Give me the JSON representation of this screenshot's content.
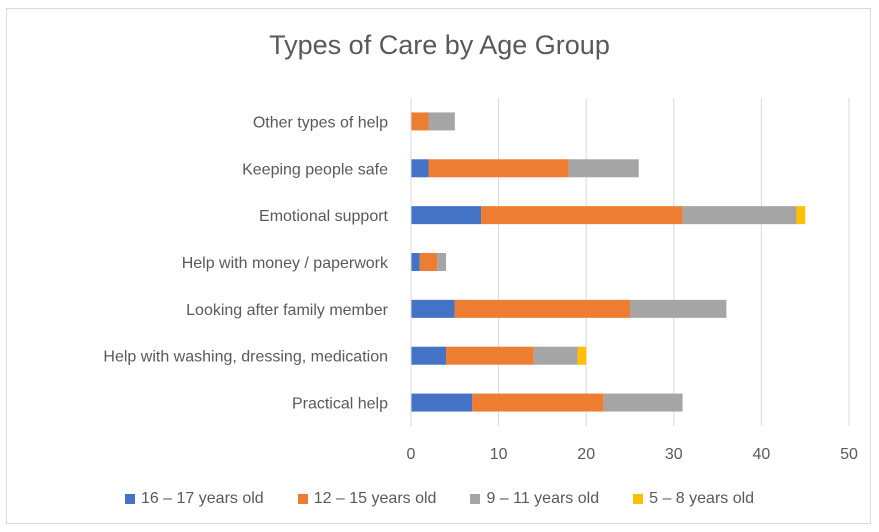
{
  "chart_data": {
    "type": "bar",
    "orientation": "horizontal",
    "stacked": true,
    "title": "Types of Care by Age Group",
    "categories": [
      "Other types of help",
      "Keeping people safe",
      "Emotional support",
      "Help with money / paperwork",
      "Looking after family member",
      "Help with washing, dressing, medication",
      "Practical help"
    ],
    "series": [
      {
        "name": "16 – 17 years old",
        "color": "#4472C4",
        "values": [
          0,
          2,
          8,
          1,
          5,
          4,
          7
        ]
      },
      {
        "name": "12 – 15 years old",
        "color": "#ED7D31",
        "values": [
          2,
          16,
          23,
          2,
          20,
          10,
          15
        ]
      },
      {
        "name": "9 – 11 years old",
        "color": "#A5A5A5",
        "values": [
          3,
          8,
          13,
          1,
          11,
          5,
          9
        ]
      },
      {
        "name": "5 – 8 years old",
        "color": "#FFC000",
        "values": [
          0,
          0,
          1,
          0,
          0,
          1,
          0
        ]
      }
    ],
    "xlim": [
      0,
      50
    ],
    "xticks": [
      0,
      10,
      20,
      30,
      40,
      50
    ],
    "grid": true,
    "legend": "bottom"
  }
}
